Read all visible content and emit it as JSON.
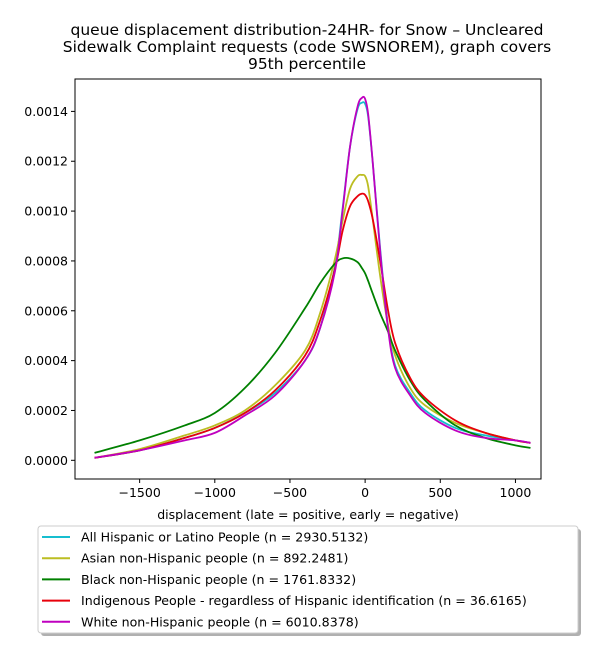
{
  "chart_data": {
    "type": "line",
    "title": [
      "queue displacement distribution-24HR-  for Snow – Uncleared",
      "Sidewalk Complaint  requests (code SWSNOREM), graph covers",
      "95th percentile"
    ],
    "xlabel": "displacement (late = positive, early = negative)",
    "ylabel": "",
    "xlim": [
      -1930,
      1170
    ],
    "ylim": [
      -7.5e-05,
      0.00153
    ],
    "xticks": [
      -1500,
      -1000,
      -500,
      0,
      500,
      1000
    ],
    "xtick_labels": [
      "−1500",
      "−1000",
      "−500",
      "0",
      "500",
      "1000"
    ],
    "yticks": [
      0.0,
      0.0002,
      0.0004,
      0.0006,
      0.0008,
      0.001,
      0.0012,
      0.0014
    ],
    "ytick_labels": [
      "0.0000",
      "0.0002",
      "0.0004",
      "0.0006",
      "0.0008",
      "0.0010",
      "0.0012",
      "0.0014"
    ],
    "grid": false,
    "legend_position": "below plot",
    "series": [
      {
        "name": "All Hispanic or Latino People (n = 2930.5132)",
        "color": "#17becf",
        "x": [
          -1800,
          -1500,
          -1200,
          -1000,
          -800,
          -600,
          -400,
          -300,
          -200,
          -150,
          -100,
          -50,
          -20,
          0,
          20,
          50,
          100,
          150,
          200,
          300,
          400,
          600,
          800,
          1000,
          1100
        ],
        "y": [
          1e-05,
          4e-05,
          9e-05,
          0.00013,
          0.00019,
          0.00027,
          0.0004,
          0.00053,
          0.00078,
          0.00101,
          0.00126,
          0.00141,
          0.001435,
          0.00143,
          0.00138,
          0.0012,
          0.00085,
          0.00055,
          0.00038,
          0.00027,
          0.0002,
          0.00013,
          0.0001,
          8e-05,
          7e-05
        ]
      },
      {
        "name": "Asian non-Hispanic people (n = 892.2481)",
        "color": "#bcbd22",
        "x": [
          -1800,
          -1500,
          -1200,
          -1000,
          -800,
          -600,
          -400,
          -300,
          -200,
          -150,
          -100,
          -50,
          -20,
          0,
          20,
          50,
          100,
          150,
          200,
          300,
          400,
          600,
          800,
          1000,
          1100
        ],
        "y": [
          1e-05,
          4.5e-05,
          0.0001,
          0.00014,
          0.0002,
          0.0003,
          0.00044,
          0.00059,
          0.00081,
          0.00096,
          0.00109,
          0.00114,
          0.001145,
          0.00114,
          0.0011,
          0.00097,
          0.00074,
          0.00055,
          0.00042,
          0.00029,
          0.00022,
          0.00015,
          0.00011,
          8e-05,
          7e-05
        ]
      },
      {
        "name": "Black non-Hispanic people (n = 1761.8332)",
        "color": "#008000",
        "x": [
          -1800,
          -1500,
          -1200,
          -1000,
          -800,
          -600,
          -400,
          -300,
          -200,
          -150,
          -100,
          -50,
          -20,
          0,
          20,
          50,
          100,
          150,
          200,
          300,
          400,
          600,
          800,
          1000,
          1100
        ],
        "y": [
          3e-05,
          8e-05,
          0.00014,
          0.00019,
          0.00029,
          0.00043,
          0.00061,
          0.00071,
          0.00079,
          0.00081,
          0.00081,
          0.000795,
          0.00077,
          0.00075,
          0.00072,
          0.00067,
          0.00059,
          0.00052,
          0.00044,
          0.00032,
          0.00024,
          0.00014,
          9e-05,
          6e-05,
          5e-05
        ]
      },
      {
        "name": "Indigenous People - regardless of Hispanic identification (n = 36.6165)",
        "color": "#e8000b",
        "x": [
          -1800,
          -1500,
          -1200,
          -1000,
          -800,
          -600,
          -400,
          -300,
          -200,
          -150,
          -100,
          -50,
          -20,
          0,
          20,
          50,
          100,
          150,
          200,
          300,
          400,
          600,
          800,
          1000,
          1100
        ],
        "y": [
          1e-05,
          4e-05,
          9e-05,
          0.00013,
          0.00019,
          0.00028,
          0.00042,
          0.00056,
          0.00077,
          0.00092,
          0.00102,
          0.00106,
          0.00107,
          0.001065,
          0.00104,
          0.00097,
          0.0008,
          0.00061,
          0.00047,
          0.00033,
          0.00025,
          0.00016,
          0.00011,
          8e-05,
          7e-05
        ]
      },
      {
        "name": "White non-Hispanic people (n = 6010.8378)",
        "color": "#bf00bf",
        "x": [
          -1800,
          -1500,
          -1200,
          -1000,
          -800,
          -600,
          -400,
          -300,
          -200,
          -150,
          -100,
          -50,
          -20,
          0,
          20,
          50,
          100,
          150,
          200,
          300,
          400,
          600,
          800,
          1000,
          1100
        ],
        "y": [
          1e-05,
          4e-05,
          8e-05,
          0.00011,
          0.00018,
          0.00026,
          0.0004,
          0.00053,
          0.00076,
          0.001,
          0.00126,
          0.00142,
          0.001455,
          0.00145,
          0.00139,
          0.0012,
          0.00084,
          0.00054,
          0.00037,
          0.00026,
          0.00019,
          0.00012,
          9e-05,
          8e-05,
          7e-05
        ]
      }
    ]
  }
}
